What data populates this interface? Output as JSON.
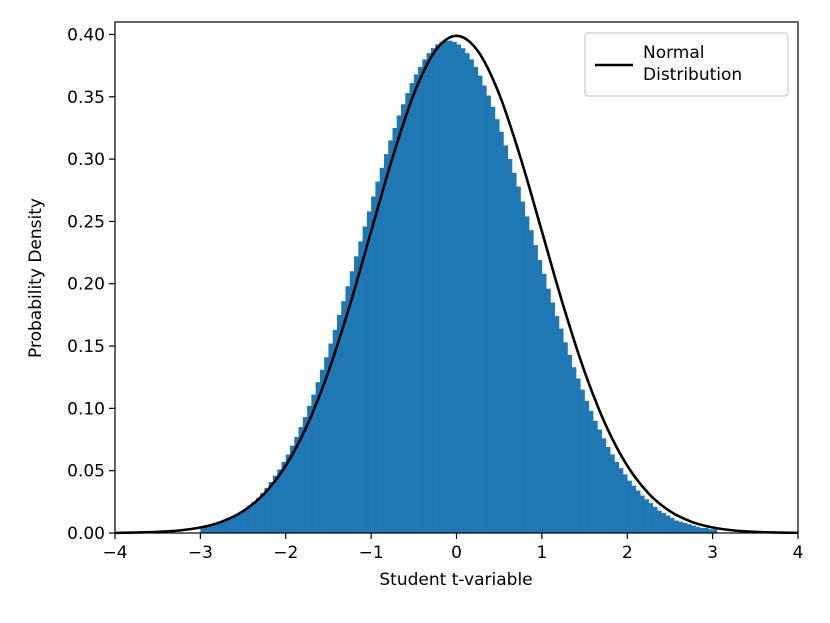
{
  "chart_data": {
    "type": "bar",
    "title": "",
    "xlabel": "Student t-variable",
    "ylabel": "Probability Density",
    "xlim": [
      -4,
      4
    ],
    "ylim": [
      0,
      0.41
    ],
    "grid": false,
    "legend_placement": "top-right",
    "xticks": [
      -4,
      -3,
      -2,
      -1,
      0,
      1,
      2,
      3,
      4
    ],
    "xtick_labels": [
      "−4",
      "−3",
      "−2",
      "−1",
      "0",
      "1",
      "2",
      "3",
      "4"
    ],
    "yticks": [
      0.0,
      0.05,
      0.1,
      0.15,
      0.2,
      0.25,
      0.3,
      0.35,
      0.4
    ],
    "ytick_labels": [
      "0.00",
      "0.05",
      "0.10",
      "0.15",
      "0.20",
      "0.25",
      "0.30",
      "0.35",
      "0.40"
    ],
    "histogram": {
      "color": "#1f77b4",
      "x_start": -3.0,
      "bin_width": 0.05,
      "values": [
        0.004,
        0.005,
        0.006,
        0.007,
        0.008,
        0.009,
        0.011,
        0.013,
        0.015,
        0.017,
        0.019,
        0.022,
        0.025,
        0.028,
        0.032,
        0.036,
        0.041,
        0.046,
        0.051,
        0.057,
        0.063,
        0.07,
        0.077,
        0.085,
        0.093,
        0.102,
        0.111,
        0.121,
        0.131,
        0.141,
        0.152,
        0.163,
        0.175,
        0.186,
        0.198,
        0.21,
        0.222,
        0.234,
        0.246,
        0.258,
        0.27,
        0.282,
        0.293,
        0.304,
        0.315,
        0.325,
        0.335,
        0.344,
        0.353,
        0.361,
        0.368,
        0.374,
        0.38,
        0.385,
        0.389,
        0.392,
        0.394,
        0.395,
        0.395,
        0.394,
        0.392,
        0.389,
        0.385,
        0.38,
        0.374,
        0.367,
        0.359,
        0.351,
        0.342,
        0.332,
        0.322,
        0.311,
        0.3,
        0.289,
        0.278,
        0.266,
        0.254,
        0.243,
        0.231,
        0.219,
        0.208,
        0.196,
        0.185,
        0.174,
        0.164,
        0.153,
        0.143,
        0.133,
        0.124,
        0.115,
        0.106,
        0.098,
        0.09,
        0.083,
        0.076,
        0.069,
        0.063,
        0.057,
        0.052,
        0.047,
        0.042,
        0.038,
        0.034,
        0.03,
        0.027,
        0.024,
        0.021,
        0.018,
        0.016,
        0.014,
        0.012,
        0.01,
        0.009,
        0.008,
        0.007,
        0.006,
        0.005,
        0.004,
        0.004,
        0.003,
        0.003
      ]
    },
    "series": [
      {
        "name": "Normal\nDistribution",
        "type": "line",
        "color": "#000000",
        "x": [
          -4.0,
          -3.75,
          -3.5,
          -3.25,
          -3.0,
          -2.75,
          -2.5,
          -2.25,
          -2.0,
          -1.75,
          -1.5,
          -1.25,
          -1.0,
          -0.75,
          -0.5,
          -0.25,
          0.0,
          0.25,
          0.5,
          0.75,
          1.0,
          1.25,
          1.5,
          1.75,
          2.0,
          2.25,
          2.5,
          2.75,
          3.0,
          3.25,
          3.5,
          3.75,
          4.0
        ],
        "y": [
          0.0001,
          0.0004,
          0.0009,
          0.002,
          0.0044,
          0.0091,
          0.0175,
          0.0317,
          0.054,
          0.0863,
          0.1295,
          0.1826,
          0.242,
          0.3011,
          0.3521,
          0.3867,
          0.3989,
          0.3867,
          0.3521,
          0.3011,
          0.242,
          0.1826,
          0.1295,
          0.0863,
          0.054,
          0.0317,
          0.0175,
          0.0091,
          0.0044,
          0.002,
          0.0009,
          0.0004,
          0.0001
        ]
      }
    ]
  }
}
